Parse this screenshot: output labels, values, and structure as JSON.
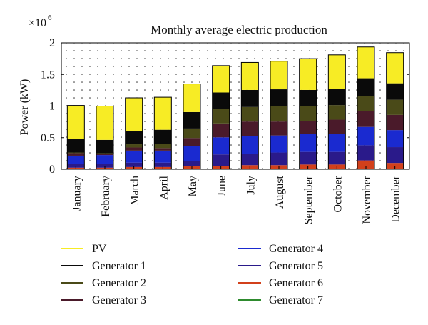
{
  "chart_data": {
    "type": "bar",
    "stacked": true,
    "title": "Monthly average electric production",
    "ylabel": "Power (kW)",
    "xlabel": "",
    "y_multiplier_label": "×10",
    "y_multiplier_exponent": "6",
    "ylim": [
      0,
      2
    ],
    "yticks": [
      {
        "value": 0,
        "label": "0"
      },
      {
        "value": 0.5,
        "label": "0.5"
      },
      {
        "value": 1,
        "label": "1"
      },
      {
        "value": 1.5,
        "label": "1.5"
      },
      {
        "value": 2,
        "label": "2"
      }
    ],
    "grid": "dotted",
    "legend_position": "bottom",
    "categories": [
      "January",
      "February",
      "March",
      "April",
      "May",
      "June",
      "July",
      "August",
      "September",
      "October",
      "November",
      "December"
    ],
    "series": [
      {
        "name": "Generator 7",
        "color": "#2e8b2e",
        "values": [
          0.005,
          0.005,
          0.005,
          0.005,
          0.005,
          0.005,
          0.005,
          0.005,
          0.005,
          0.005,
          0.01,
          0.01
        ]
      },
      {
        "name": "Generator 6",
        "color": "#d2401b",
        "values": [
          0.02,
          0.02,
          0.03,
          0.03,
          0.04,
          0.05,
          0.06,
          0.06,
          0.07,
          0.07,
          0.13,
          0.09
        ]
      },
      {
        "name": "Generator 5",
        "color": "#2a1a8a",
        "values": [
          0.06,
          0.06,
          0.07,
          0.07,
          0.09,
          0.18,
          0.18,
          0.2,
          0.2,
          0.2,
          0.24,
          0.25
        ]
      },
      {
        "name": "Generator 4",
        "color": "#1a2ad0",
        "values": [
          0.13,
          0.14,
          0.19,
          0.19,
          0.23,
          0.27,
          0.28,
          0.27,
          0.28,
          0.28,
          0.29,
          0.27
        ]
      },
      {
        "name": "Generator 3",
        "color": "#4a1a2a",
        "values": [
          0.04,
          0.02,
          0.05,
          0.04,
          0.13,
          0.22,
          0.23,
          0.22,
          0.21,
          0.23,
          0.25,
          0.24
        ]
      },
      {
        "name": "Generator 2",
        "color": "#4a4a18",
        "values": [
          0.01,
          0.01,
          0.05,
          0.07,
          0.15,
          0.23,
          0.23,
          0.24,
          0.23,
          0.23,
          0.24,
          0.24
        ]
      },
      {
        "name": "Generator 1",
        "color": "#0a0a0a",
        "values": [
          0.21,
          0.21,
          0.21,
          0.22,
          0.26,
          0.26,
          0.27,
          0.27,
          0.26,
          0.26,
          0.28,
          0.26
        ]
      },
      {
        "name": "PV",
        "color": "#f7ec25",
        "values": [
          0.535,
          0.535,
          0.525,
          0.515,
          0.445,
          0.425,
          0.435,
          0.445,
          0.495,
          0.535,
          0.495,
          0.485
        ]
      }
    ]
  },
  "legend": {
    "left": [
      "PV",
      "Generator 1",
      "Generator 2",
      "Generator 3"
    ],
    "right": [
      "Generator 4",
      "Generator 5",
      "Generator 6",
      "Generator 7"
    ]
  }
}
